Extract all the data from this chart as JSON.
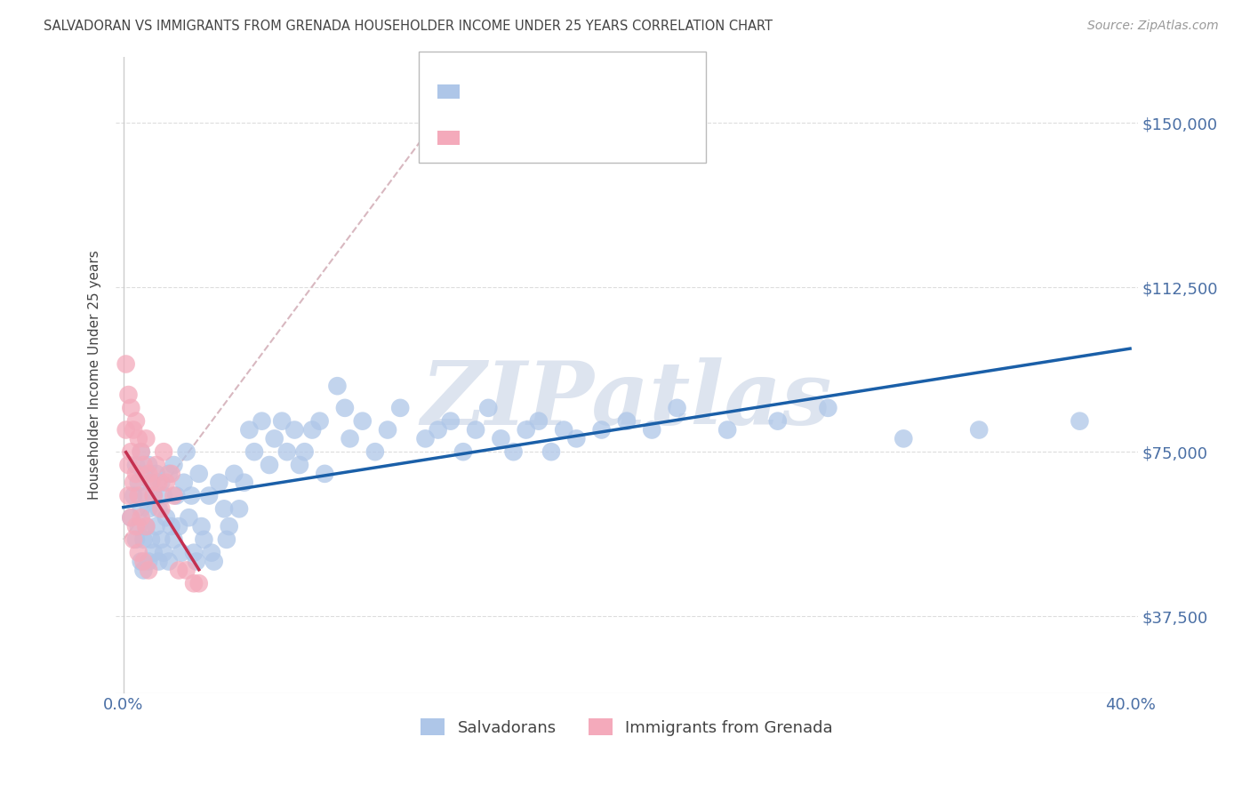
{
  "title": "SALVADORAN VS IMMIGRANTS FROM GRENADA HOUSEHOLDER INCOME UNDER 25 YEARS CORRELATION CHART",
  "source": "Source: ZipAtlas.com",
  "ylabel": "Householder Income Under 25 years",
  "xlim": [
    -0.003,
    0.403
  ],
  "ylim": [
    20000,
    165000
  ],
  "yticks": [
    37500,
    75000,
    112500,
    150000
  ],
  "ytick_labels": [
    "$37,500",
    "$75,000",
    "$112,500",
    "$150,000"
  ],
  "xtick_positions": [
    0.0,
    0.1,
    0.2,
    0.3,
    0.4
  ],
  "xtick_labels": [
    "0.0%",
    "",
    "",
    "",
    "40.0%"
  ],
  "salvadoran_color": "#aec6e8",
  "grenada_color": "#f4aabb",
  "line_salvadoran_color": "#1a5fa8",
  "line_grenada_color": "#c43050",
  "dashed_line_color": "#d8b8c0",
  "watermark": "ZIPatlas",
  "watermark_color": "#dde4ef",
  "background_color": "#ffffff",
  "grid_color": "#dddddd",
  "axis_label_color": "#4a6fa5",
  "title_color": "#444444",
  "legend_box_color": "#eeeeee",
  "salvadoran_x": [
    0.003,
    0.004,
    0.005,
    0.005,
    0.006,
    0.006,
    0.007,
    0.007,
    0.007,
    0.008,
    0.008,
    0.008,
    0.009,
    0.009,
    0.01,
    0.01,
    0.01,
    0.011,
    0.011,
    0.012,
    0.012,
    0.013,
    0.013,
    0.014,
    0.014,
    0.015,
    0.015,
    0.016,
    0.016,
    0.017,
    0.018,
    0.018,
    0.019,
    0.02,
    0.02,
    0.021,
    0.022,
    0.023,
    0.024,
    0.025,
    0.026,
    0.027,
    0.028,
    0.029,
    0.03,
    0.031,
    0.032,
    0.034,
    0.035,
    0.036,
    0.038,
    0.04,
    0.041,
    0.042,
    0.044,
    0.046,
    0.048,
    0.05,
    0.052,
    0.055,
    0.058,
    0.06,
    0.063,
    0.065,
    0.068,
    0.07,
    0.072,
    0.075,
    0.078,
    0.08,
    0.085,
    0.088,
    0.09,
    0.095,
    0.1,
    0.105,
    0.11,
    0.12,
    0.125,
    0.13,
    0.135,
    0.14,
    0.145,
    0.15,
    0.155,
    0.16,
    0.165,
    0.17,
    0.175,
    0.18,
    0.19,
    0.2,
    0.21,
    0.22,
    0.24,
    0.26,
    0.28,
    0.31,
    0.34,
    0.38
  ],
  "salvadoran_y": [
    60000,
    65000,
    72000,
    55000,
    68000,
    58000,
    75000,
    62000,
    50000,
    70000,
    55000,
    48000,
    65000,
    58000,
    72000,
    62000,
    50000,
    68000,
    55000,
    65000,
    52000,
    70000,
    58000,
    62000,
    50000,
    68000,
    55000,
    65000,
    52000,
    60000,
    70000,
    50000,
    58000,
    72000,
    55000,
    65000,
    58000,
    52000,
    68000,
    75000,
    60000,
    65000,
    52000,
    50000,
    70000,
    58000,
    55000,
    65000,
    52000,
    50000,
    68000,
    62000,
    55000,
    58000,
    70000,
    62000,
    68000,
    80000,
    75000,
    82000,
    72000,
    78000,
    82000,
    75000,
    80000,
    72000,
    75000,
    80000,
    82000,
    70000,
    90000,
    85000,
    78000,
    82000,
    75000,
    80000,
    85000,
    78000,
    80000,
    82000,
    75000,
    80000,
    85000,
    78000,
    75000,
    80000,
    82000,
    75000,
    80000,
    78000,
    80000,
    82000,
    80000,
    85000,
    80000,
    82000,
    85000,
    78000,
    80000,
    82000
  ],
  "grenada_x": [
    0.001,
    0.001,
    0.002,
    0.002,
    0.002,
    0.003,
    0.003,
    0.003,
    0.004,
    0.004,
    0.004,
    0.005,
    0.005,
    0.005,
    0.006,
    0.006,
    0.006,
    0.007,
    0.007,
    0.008,
    0.008,
    0.009,
    0.009,
    0.01,
    0.01,
    0.011,
    0.012,
    0.013,
    0.014,
    0.015,
    0.016,
    0.017,
    0.019,
    0.02,
    0.022,
    0.025,
    0.028,
    0.03
  ],
  "grenada_y": [
    95000,
    80000,
    88000,
    72000,
    65000,
    85000,
    75000,
    60000,
    80000,
    68000,
    55000,
    82000,
    70000,
    58000,
    78000,
    65000,
    52000,
    75000,
    60000,
    72000,
    50000,
    78000,
    58000,
    70000,
    48000,
    68000,
    65000,
    72000,
    68000,
    62000,
    75000,
    68000,
    70000,
    65000,
    48000,
    48000,
    45000,
    45000
  ]
}
